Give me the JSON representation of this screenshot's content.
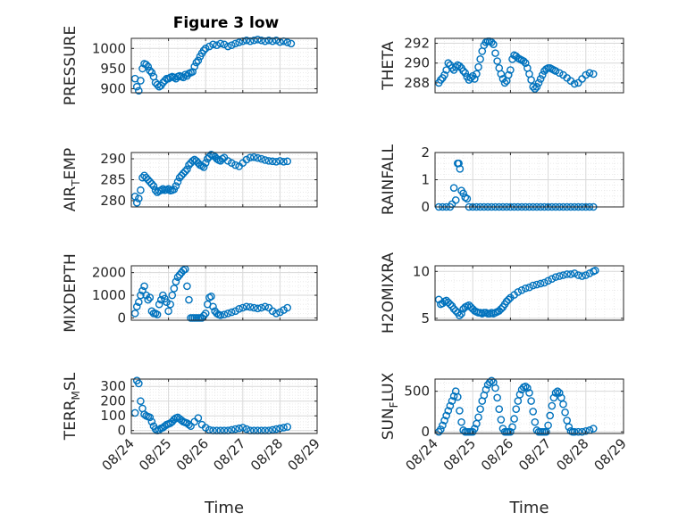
{
  "figure": {
    "title": "Figure 3 low"
  },
  "chart_data": [
    {
      "type": "scatter",
      "ylabel": "PRESSURE",
      "title": "Figure 3 low",
      "xlim": [
        "08/24",
        "08/29"
      ],
      "ylim": [
        890,
        1025
      ],
      "yticks": [
        "900",
        "950",
        "1000"
      ],
      "grid": true,
      "x": [
        0.1,
        0.15,
        0.2,
        0.25,
        0.3,
        0.35,
        0.4,
        0.45,
        0.5,
        0.55,
        0.6,
        0.65,
        0.7,
        0.75,
        0.8,
        0.85,
        0.9,
        0.95,
        1.0,
        1.05,
        1.1,
        1.15,
        1.2,
        1.25,
        1.3,
        1.35,
        1.4,
        1.45,
        1.5,
        1.55,
        1.6,
        1.65,
        1.7,
        1.75,
        1.8,
        1.85,
        1.9,
        1.95,
        2.0,
        2.1,
        2.2,
        2.3,
        2.4,
        2.5,
        2.6,
        2.7,
        2.8,
        2.9,
        3.0,
        3.1,
        3.2,
        3.3,
        3.4,
        3.5,
        3.6,
        3.7,
        3.8,
        3.9,
        4.0,
        4.1,
        4.2,
        4.3
      ],
      "y": [
        925,
        905,
        895,
        920,
        950,
        962,
        960,
        955,
        945,
        940,
        930,
        915,
        910,
        905,
        908,
        915,
        920,
        925,
        925,
        928,
        930,
        928,
        925,
        930,
        932,
        930,
        928,
        935,
        932,
        938,
        940,
        942,
        955,
        965,
        970,
        980,
        988,
        995,
        1000,
        1005,
        1010,
        1008,
        1012,
        1010,
        1005,
        1008,
        1012,
        1015,
        1018,
        1020,
        1018,
        1020,
        1022,
        1020,
        1018,
        1020,
        1018,
        1020,
        1016,
        1018,
        1015,
        1012
      ]
    },
    {
      "type": "scatter",
      "ylabel": "THETA",
      "xlim": [
        "08/24",
        "08/29"
      ],
      "ylim": [
        287,
        292.5
      ],
      "yticks": [
        "288",
        "290",
        "292"
      ],
      "grid": true,
      "x": [
        0.1,
        0.15,
        0.2,
        0.25,
        0.3,
        0.35,
        0.4,
        0.45,
        0.5,
        0.55,
        0.6,
        0.65,
        0.7,
        0.75,
        0.8,
        0.85,
        0.9,
        0.95,
        1.0,
        1.05,
        1.1,
        1.15,
        1.2,
        1.25,
        1.3,
        1.35,
        1.4,
        1.45,
        1.5,
        1.55,
        1.6,
        1.65,
        1.7,
        1.75,
        1.8,
        1.85,
        1.9,
        1.95,
        2.0,
        2.05,
        2.1,
        2.15,
        2.2,
        2.25,
        2.3,
        2.35,
        2.4,
        2.45,
        2.5,
        2.55,
        2.6,
        2.65,
        2.7,
        2.75,
        2.8,
        2.85,
        2.9,
        2.95,
        3.0,
        3.05,
        3.1,
        3.15,
        3.2,
        3.3,
        3.4,
        3.5,
        3.6,
        3.7,
        3.8,
        3.9,
        4.0,
        4.1,
        4.2
      ],
      "y": [
        288.0,
        288.3,
        288.5,
        288.8,
        289.3,
        290.0,
        289.8,
        289.5,
        289.3,
        289.6,
        289.8,
        289.7,
        289.5,
        289.2,
        289.0,
        288.6,
        288.3,
        288.5,
        288.7,
        288.4,
        288.9,
        289.6,
        290.4,
        291.2,
        291.8,
        292.1,
        292.2,
        292.2,
        292.1,
        291.9,
        291.0,
        290.2,
        289.5,
        288.9,
        288.4,
        288.0,
        288.2,
        288.8,
        289.3,
        290.4,
        290.8,
        290.7,
        290.5,
        290.4,
        290.3,
        290.2,
        290.0,
        289.5,
        288.9,
        288.3,
        287.6,
        287.4,
        287.6,
        288.0,
        288.4,
        288.8,
        289.2,
        289.4,
        289.5,
        289.5,
        289.4,
        289.3,
        289.2,
        289.0,
        288.8,
        288.5,
        288.2,
        287.9,
        288.0,
        288.4,
        288.8,
        289.0,
        288.9
      ]
    },
    {
      "type": "scatter",
      "ylabel": "AIR_TEMP",
      "xlim": [
        "08/24",
        "08/29"
      ],
      "ylim": [
        278.5,
        291.5
      ],
      "yticks": [
        "280",
        "285",
        "290"
      ],
      "grid": true,
      "x": [
        0.1,
        0.15,
        0.2,
        0.25,
        0.3,
        0.35,
        0.4,
        0.45,
        0.5,
        0.55,
        0.6,
        0.65,
        0.7,
        0.75,
        0.8,
        0.85,
        0.9,
        0.95,
        1.0,
        1.05,
        1.1,
        1.15,
        1.2,
        1.25,
        1.3,
        1.35,
        1.4,
        1.45,
        1.5,
        1.55,
        1.6,
        1.65,
        1.7,
        1.75,
        1.8,
        1.85,
        1.9,
        1.95,
        2.0,
        2.05,
        2.1,
        2.15,
        2.2,
        2.25,
        2.3,
        2.35,
        2.4,
        2.45,
        2.5,
        2.6,
        2.7,
        2.8,
        2.9,
        3.0,
        3.1,
        3.2,
        3.3,
        3.4,
        3.5,
        3.6,
        3.7,
        3.8,
        3.9,
        4.0,
        4.1,
        4.2
      ],
      "y": [
        281.0,
        279.5,
        280.5,
        282.5,
        285.5,
        286.0,
        285.5,
        285.0,
        284.5,
        284.0,
        283.5,
        282.5,
        282.0,
        282.3,
        282.5,
        282.8,
        282.5,
        282.6,
        282.8,
        282.4,
        282.5,
        282.7,
        283.5,
        284.5,
        285.5,
        286.0,
        286.5,
        287.0,
        287.5,
        288.5,
        289.0,
        289.5,
        289.8,
        289.5,
        289.0,
        288.5,
        288.3,
        288.0,
        289.0,
        290.0,
        290.5,
        291.0,
        290.8,
        290.5,
        290.0,
        289.7,
        289.5,
        290.0,
        290.3,
        289.5,
        289.0,
        288.5,
        288.2,
        289.0,
        289.8,
        290.3,
        290.4,
        290.2,
        290.0,
        289.7,
        289.5,
        289.4,
        289.3,
        289.5,
        289.3,
        289.4
      ]
    },
    {
      "type": "scatter",
      "ylabel": "RAINFALL",
      "xlim": [
        "08/24",
        "08/29"
      ],
      "ylim": [
        0,
        2
      ],
      "yticks": [
        "0",
        "1",
        "2"
      ],
      "grid": true,
      "x": [
        0.1,
        0.2,
        0.3,
        0.4,
        0.45,
        0.5,
        0.55,
        0.6,
        0.63,
        0.66,
        0.7,
        0.75,
        0.8,
        0.85,
        0.9,
        1.0,
        1.1,
        1.2,
        1.3,
        1.4,
        1.5,
        1.6,
        1.7,
        1.8,
        1.9,
        2.0,
        2.1,
        2.2,
        2.3,
        2.4,
        2.5,
        2.6,
        2.7,
        2.8,
        2.9,
        3.0,
        3.1,
        3.2,
        3.3,
        3.4,
        3.5,
        3.6,
        3.7,
        3.8,
        3.9,
        4.0,
        4.1,
        4.2
      ],
      "y": [
        0,
        0,
        0,
        0,
        0.1,
        0.7,
        0.25,
        1.6,
        1.6,
        1.4,
        0.6,
        0.5,
        0.35,
        0.3,
        0,
        0,
        0,
        0,
        0,
        0,
        0,
        0,
        0,
        0,
        0,
        0,
        0,
        0,
        0,
        0,
        0,
        0,
        0,
        0,
        0,
        0,
        0,
        0,
        0,
        0,
        0,
        0,
        0,
        0,
        0,
        0,
        0,
        0
      ]
    },
    {
      "type": "scatter",
      "ylabel": "MIXDEPTH",
      "xlim": [
        "08/24",
        "08/29"
      ],
      "ylim": [
        -100,
        2300
      ],
      "yticks": [
        "0",
        "1000",
        "2000"
      ],
      "grid": true,
      "x": [
        0.1,
        0.15,
        0.2,
        0.25,
        0.3,
        0.35,
        0.4,
        0.45,
        0.5,
        0.55,
        0.6,
        0.65,
        0.7,
        0.75,
        0.8,
        0.85,
        0.9,
        0.95,
        1.0,
        1.05,
        1.1,
        1.15,
        1.2,
        1.25,
        1.3,
        1.35,
        1.4,
        1.45,
        1.5,
        1.55,
        1.6,
        1.65,
        1.7,
        1.75,
        1.8,
        1.85,
        1.9,
        1.95,
        2.0,
        2.05,
        2.1,
        2.15,
        2.2,
        2.25,
        2.3,
        2.35,
        2.4,
        2.5,
        2.6,
        2.7,
        2.8,
        2.9,
        3.0,
        3.1,
        3.2,
        3.3,
        3.4,
        3.5,
        3.6,
        3.7,
        3.8,
        3.9,
        4.0,
        4.1,
        4.2
      ],
      "y": [
        200,
        500,
        700,
        1000,
        1200,
        1400,
        1000,
        800,
        900,
        300,
        200,
        200,
        150,
        600,
        800,
        1000,
        850,
        700,
        300,
        600,
        1000,
        1300,
        1600,
        1800,
        1900,
        2000,
        2100,
        2150,
        1400,
        800,
        0,
        0,
        0,
        0,
        0,
        0,
        0,
        100,
        200,
        600,
        900,
        950,
        500,
        300,
        200,
        150,
        120,
        150,
        200,
        250,
        300,
        400,
        450,
        500,
        480,
        450,
        420,
        450,
        500,
        450,
        300,
        200,
        250,
        350,
        450
      ]
    },
    {
      "type": "scatter",
      "ylabel": "H2OMIXRA",
      "xlim": [
        "08/24",
        "08/29"
      ],
      "ylim": [
        4.8,
        10.6
      ],
      "yticks": [
        "5",
        "10"
      ],
      "grid": true,
      "x": [
        0.1,
        0.15,
        0.2,
        0.25,
        0.3,
        0.35,
        0.4,
        0.45,
        0.5,
        0.55,
        0.6,
        0.65,
        0.7,
        0.75,
        0.8,
        0.85,
        0.9,
        0.95,
        1.0,
        1.05,
        1.1,
        1.15,
        1.2,
        1.25,
        1.3,
        1.35,
        1.4,
        1.45,
        1.5,
        1.55,
        1.6,
        1.65,
        1.7,
        1.75,
        1.8,
        1.85,
        1.9,
        1.95,
        2.0,
        2.1,
        2.2,
        2.3,
        2.4,
        2.5,
        2.6,
        2.7,
        2.8,
        2.9,
        3.0,
        3.1,
        3.2,
        3.3,
        3.4,
        3.5,
        3.6,
        3.7,
        3.8,
        3.9,
        4.0,
        4.1,
        4.2,
        4.25
      ],
      "y": [
        7.0,
        6.5,
        6.6,
        6.8,
        6.9,
        6.7,
        6.5,
        6.3,
        6.0,
        5.8,
        5.6,
        5.3,
        5.5,
        6.0,
        6.2,
        6.3,
        6.4,
        6.2,
        6.0,
        5.8,
        5.7,
        5.6,
        5.6,
        5.5,
        5.6,
        5.6,
        5.5,
        5.5,
        5.6,
        5.5,
        5.6,
        5.7,
        5.8,
        6.0,
        6.2,
        6.5,
        6.8,
        7.0,
        7.2,
        7.5,
        7.8,
        8.0,
        8.2,
        8.3,
        8.5,
        8.6,
        8.7,
        8.8,
        9.0,
        9.2,
        9.4,
        9.5,
        9.6,
        9.7,
        9.7,
        9.8,
        9.6,
        9.5,
        9.6,
        9.8,
        10.0,
        10.1
      ]
    },
    {
      "type": "scatter",
      "ylabel": "TERR_MSL",
      "xlim": [
        "08/24",
        "08/29"
      ],
      "ylim": [
        -20,
        350
      ],
      "yticks": [
        "0",
        "100",
        "200",
        "300"
      ],
      "grid": true,
      "x": [
        0.1,
        0.15,
        0.2,
        0.25,
        0.3,
        0.35,
        0.4,
        0.45,
        0.5,
        0.55,
        0.6,
        0.65,
        0.7,
        0.75,
        0.8,
        0.85,
        0.9,
        0.95,
        1.0,
        1.05,
        1.1,
        1.15,
        1.2,
        1.25,
        1.3,
        1.35,
        1.4,
        1.45,
        1.5,
        1.55,
        1.6,
        1.7,
        1.8,
        1.9,
        2.0,
        2.1,
        2.2,
        2.3,
        2.4,
        2.5,
        2.6,
        2.7,
        2.8,
        2.9,
        3.0,
        3.1,
        3.2,
        3.3,
        3.4,
        3.5,
        3.6,
        3.7,
        3.8,
        3.9,
        4.0,
        4.1,
        4.2
      ],
      "y": [
        120,
        340,
        320,
        200,
        150,
        110,
        100,
        95,
        90,
        60,
        30,
        10,
        0,
        5,
        15,
        20,
        30,
        40,
        45,
        50,
        60,
        75,
        85,
        90,
        80,
        70,
        60,
        55,
        50,
        40,
        30,
        60,
        85,
        40,
        20,
        5,
        0,
        0,
        0,
        0,
        0,
        5,
        10,
        15,
        20,
        10,
        0,
        0,
        0,
        0,
        0,
        0,
        5,
        10,
        15,
        20,
        25
      ]
    },
    {
      "type": "scatter",
      "ylabel": "SUN_FLUX",
      "xlim": [
        "08/24",
        "08/29"
      ],
      "ylim": [
        -20,
        650
      ],
      "yticks": [
        "0",
        "500"
      ],
      "grid": true,
      "x": [
        0.1,
        0.15,
        0.2,
        0.25,
        0.3,
        0.35,
        0.4,
        0.45,
        0.5,
        0.55,
        0.6,
        0.65,
        0.7,
        0.75,
        0.8,
        0.85,
        0.9,
        0.95,
        1.0,
        1.05,
        1.1,
        1.15,
        1.2,
        1.25,
        1.3,
        1.35,
        1.4,
        1.45,
        1.5,
        1.55,
        1.6,
        1.65,
        1.7,
        1.75,
        1.8,
        1.85,
        1.9,
        1.95,
        2.0,
        2.05,
        2.1,
        2.15,
        2.2,
        2.25,
        2.3,
        2.35,
        2.4,
        2.45,
        2.5,
        2.55,
        2.6,
        2.65,
        2.7,
        2.75,
        2.8,
        2.85,
        2.9,
        2.95,
        3.0,
        3.05,
        3.1,
        3.15,
        3.2,
        3.25,
        3.3,
        3.35,
        3.4,
        3.45,
        3.5,
        3.55,
        3.6,
        3.65,
        3.7,
        3.8,
        3.9,
        4.0,
        4.1,
        4.2
      ],
      "y": [
        0,
        30,
        80,
        140,
        200,
        260,
        320,
        380,
        440,
        500,
        430,
        260,
        120,
        20,
        0,
        0,
        0,
        0,
        0,
        40,
        100,
        180,
        280,
        380,
        450,
        520,
        580,
        610,
        630,
        610,
        540,
        420,
        280,
        150,
        40,
        0,
        0,
        0,
        0,
        60,
        160,
        280,
        380,
        460,
        520,
        550,
        560,
        540,
        480,
        380,
        250,
        120,
        20,
        0,
        0,
        0,
        0,
        0,
        80,
        200,
        320,
        420,
        480,
        500,
        480,
        420,
        340,
        240,
        140,
        60,
        10,
        0,
        0,
        0,
        0,
        10,
        20,
        40
      ]
    }
  ],
  "xticks": [
    "08/24",
    "08/25",
    "08/26",
    "08/27",
    "08/28",
    "08/29"
  ],
  "xlabel": "Time",
  "colors": {
    "marker": "#0072BD",
    "axis": "#262626",
    "grid": "#d9d9d9",
    "minorgrid": "#e6e6e6"
  }
}
